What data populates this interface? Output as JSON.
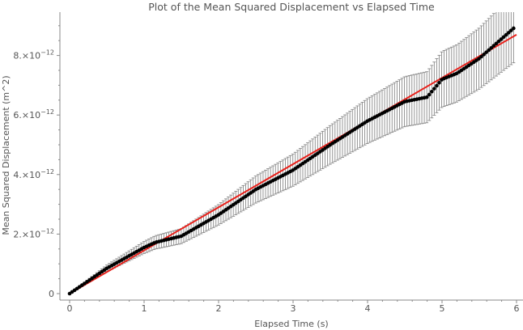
{
  "chart_data": {
    "type": "scatter",
    "title": "Plot of the Mean Squared Displacement vs Elapsed Time",
    "xlabel": "Elapsed Time (s)",
    "ylabel": "Mean Squared Displacement (m^2)",
    "xlim": [
      -0.15,
      6.1
    ],
    "ylim": [
      -2e-13,
      9.4e-12
    ],
    "x_ticks": [
      0,
      1,
      2,
      3,
      4,
      5,
      6
    ],
    "x_tick_labels": [
      "0",
      "1",
      "2",
      "3",
      "4",
      "5",
      "6"
    ],
    "y_ticks": [
      0,
      2e-12,
      4e-12,
      6e-12,
      8e-12
    ],
    "y_tick_labels": [
      {
        "mantissa": "0",
        "exponent": ""
      },
      {
        "mantissa": "2.×10",
        "exponent": "−12"
      },
      {
        "mantissa": "4.×10",
        "exponent": "−12"
      },
      {
        "mantissa": "6.×10",
        "exponent": "−12"
      },
      {
        "mantissa": "8.×10",
        "exponent": "−12"
      }
    ],
    "grid": false,
    "legend": "none",
    "colors": {
      "points": "#000000",
      "error_bars": "#8a8a8a",
      "fit_line": "#e8211b"
    },
    "series": [
      {
        "style": "points-with-error-bars",
        "x_start": 0.0,
        "x_step": 0.0333,
        "count": 180,
        "y_anchor_points": [
          [
            0.0,
            0.0
          ],
          [
            0.5,
            8.5e-13
          ],
          [
            1.0,
            1.55e-12
          ],
          [
            1.15,
            1.72e-12
          ],
          [
            1.5,
            1.93e-12
          ],
          [
            2.0,
            2.65e-12
          ],
          [
            2.5,
            3.5e-12
          ],
          [
            3.0,
            4.15e-12
          ],
          [
            3.5,
            5e-12
          ],
          [
            4.0,
            5.8e-12
          ],
          [
            4.5,
            6.45e-12
          ],
          [
            4.8,
            6.6e-12
          ],
          [
            5.0,
            7.2e-12
          ],
          [
            5.2,
            7.4e-12
          ],
          [
            5.5,
            7.9e-12
          ],
          [
            6.0,
            9e-12
          ]
        ],
        "error_fraction": 0.13
      },
      {
        "style": "line",
        "x": [
          0,
          6
        ],
        "y": [
          0,
          8.7e-12
        ]
      }
    ]
  }
}
